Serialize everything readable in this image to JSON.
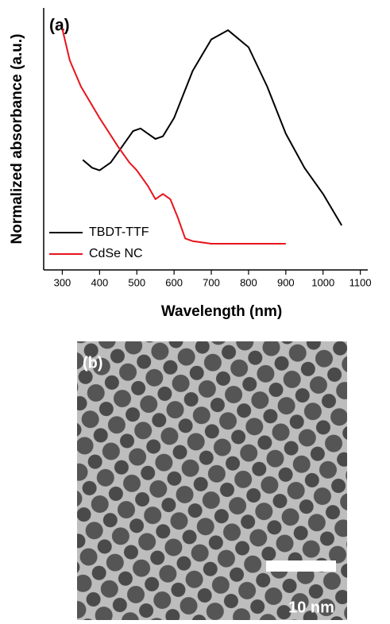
{
  "chart_data": {
    "type": "line",
    "panel_label": "(a)",
    "ylabel": "Normalized absorbance (a.u.)",
    "xlabel": "Wavelength (nm)",
    "xlim": [
      250,
      1120
    ],
    "xticks": [
      300,
      400,
      500,
      600,
      700,
      800,
      900,
      1000,
      1100
    ],
    "ylim": [
      0,
      1
    ],
    "legend": "lower-left",
    "series": [
      {
        "name": "TBDT-TTF",
        "color": "#000000",
        "x": [
          355,
          380,
          400,
          430,
          460,
          490,
          510,
          530,
          550,
          570,
          600,
          650,
          700,
          745,
          800,
          850,
          900,
          950,
          1000,
          1050
        ],
        "values": [
          0.42,
          0.39,
          0.38,
          0.41,
          0.47,
          0.53,
          0.54,
          0.52,
          0.5,
          0.51,
          0.58,
          0.76,
          0.88,
          0.915,
          0.85,
          0.7,
          0.52,
          0.39,
          0.29,
          0.17
        ]
      },
      {
        "name": "CdSe NC",
        "color": "#e8141c",
        "x": [
          300,
          320,
          350,
          400,
          450,
          480,
          500,
          530,
          550,
          570,
          590,
          610,
          630,
          650,
          700,
          800,
          900
        ],
        "values": [
          0.92,
          0.8,
          0.7,
          0.58,
          0.47,
          0.41,
          0.38,
          0.32,
          0.27,
          0.29,
          0.27,
          0.2,
          0.12,
          0.11,
          0.1,
          0.1,
          0.1
        ]
      }
    ]
  },
  "image_panel": {
    "label": "(b)",
    "scale_bar": "10 nm"
  }
}
